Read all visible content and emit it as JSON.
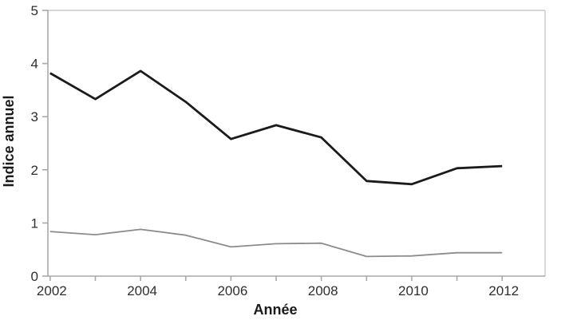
{
  "chart_data": {
    "type": "line",
    "title": "",
    "xlabel": "Année",
    "ylabel": "Indice annuel",
    "x": [
      2002,
      2003,
      2004,
      2005,
      2006,
      2007,
      2008,
      2009,
      2010,
      2011,
      2012
    ],
    "series": [
      {
        "name": "black-series",
        "color": "#1b1b1b",
        "width": 2.8,
        "values": [
          3.82,
          3.33,
          3.86,
          3.28,
          2.58,
          2.84,
          2.61,
          1.79,
          1.73,
          2.03,
          2.07
        ]
      },
      {
        "name": "gray-series",
        "color": "#8c8c8c",
        "width": 1.8,
        "values": [
          0.84,
          0.78,
          0.88,
          0.77,
          0.55,
          0.61,
          0.62,
          0.37,
          0.38,
          0.44,
          0.44
        ]
      }
    ],
    "xlim": [
      2001.95,
      2012.95
    ],
    "ylim": [
      0,
      5
    ],
    "x_ticks": [
      2002,
      2003,
      2004,
      2005,
      2006,
      2007,
      2008,
      2009,
      2010,
      2011,
      2012
    ],
    "x_label_years": [
      2002,
      2004,
      2006,
      2008,
      2010,
      2012
    ],
    "y_ticks": [
      0,
      1,
      2,
      3,
      4,
      5
    ],
    "grid": false,
    "legend": "none",
    "colors": {
      "axis": "#a9a9a9",
      "frame": "#c9c9c9",
      "tick_label": "#2e2e2e",
      "axis_title": "#1a1a1a",
      "background": "#ffffff"
    }
  }
}
